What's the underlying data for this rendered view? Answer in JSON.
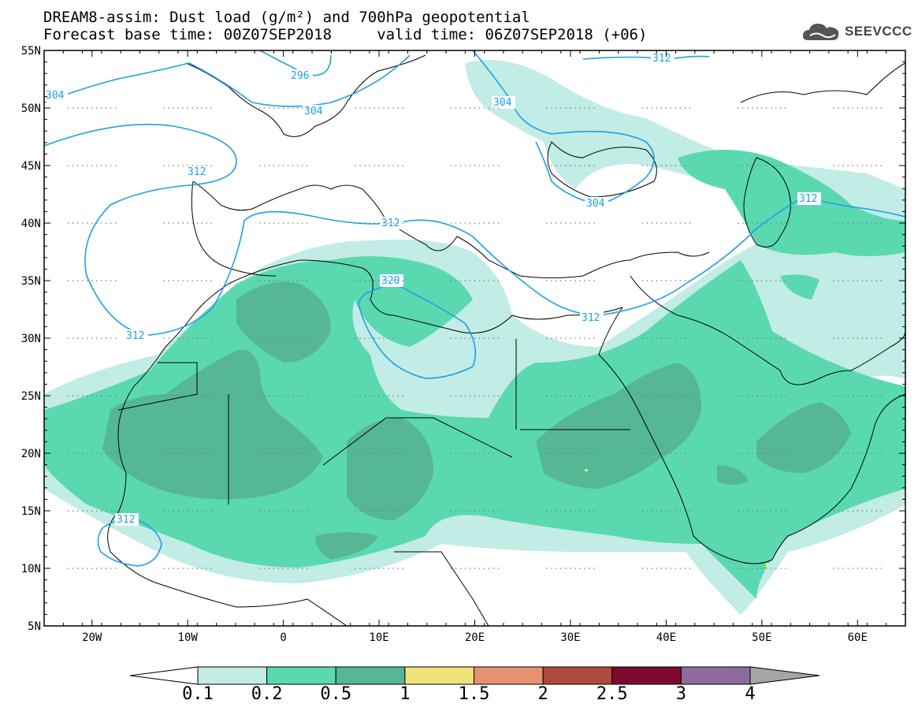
{
  "title": {
    "line1": "DREAM8-assim: Dust load (g/m²) and 700hPa geopotential",
    "line2": "Forecast base time: 00Z07SEP2018     valid time: 06Z07SEP2018 (+06)"
  },
  "logo": {
    "text": "SEEVCCC",
    "icon": "cloud-icon"
  },
  "map": {
    "lat_ticks": [
      "55N",
      "50N",
      "45N",
      "40N",
      "35N",
      "30N",
      "25N",
      "20N",
      "15N",
      "10N",
      "5N"
    ],
    "lon_ticks": [
      "20W",
      "10W",
      "0",
      "10E",
      "20E",
      "30E",
      "40E",
      "50E",
      "60E"
    ],
    "contour_labels": [
      "304",
      "296",
      "304",
      "312",
      "304",
      "304",
      "312",
      "312",
      "312",
      "312",
      "320",
      "312",
      "312",
      "312"
    ],
    "contour_color": "#1ea0e8",
    "coastline_color": "#000000"
  },
  "colorbar": {
    "labels": [
      "0.1",
      "0.2",
      "0.5",
      "1",
      "1.5",
      "2",
      "2.5",
      "3",
      "4"
    ],
    "colors": [
      "#ffffff",
      "#c2ece6",
      "#5ad9b1",
      "#55b793",
      "#efe27a",
      "#e8916e",
      "#ac4a3c",
      "#7c0b2e",
      "#8e6b9d",
      "#a6a6a6"
    ]
  }
}
